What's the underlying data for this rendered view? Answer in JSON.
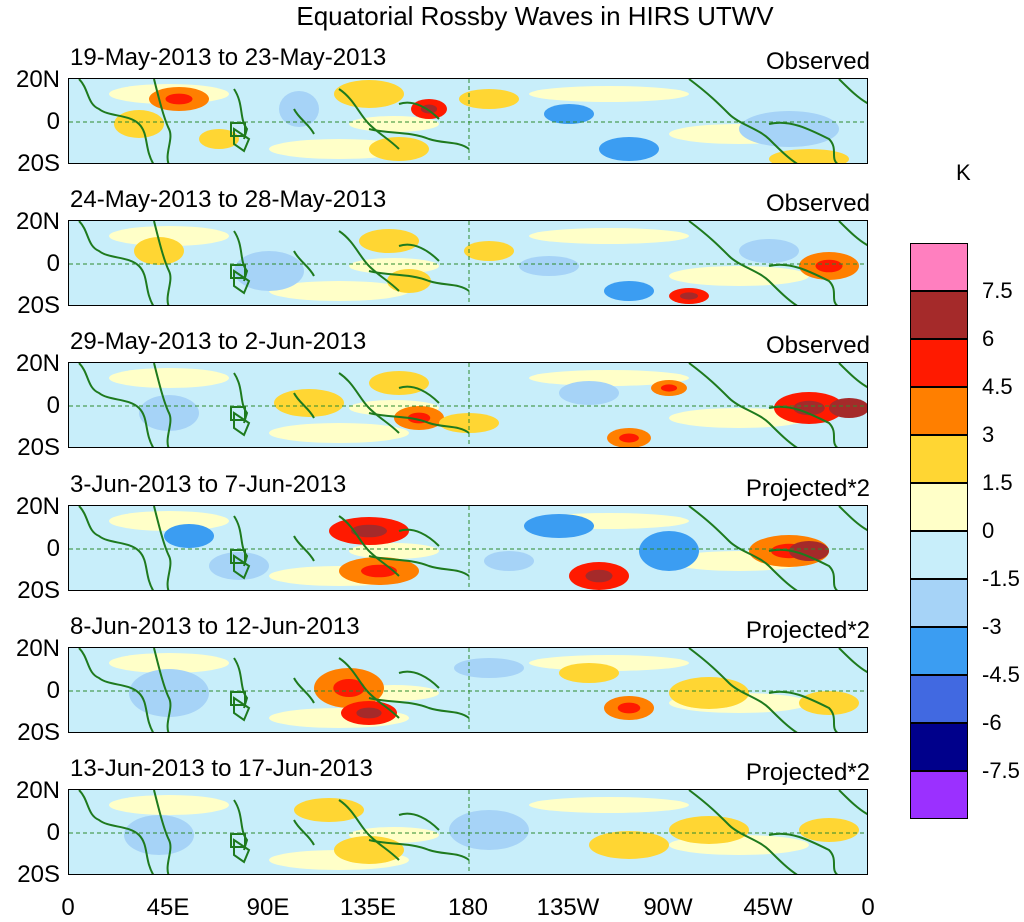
{
  "title": "Equatorial Rossby Waves in HIRS UTWV",
  "panels": [
    {
      "date_range": "19-May-2013 to 23-May-2013",
      "type": "Observed"
    },
    {
      "date_range": "24-May-2013 to 28-May-2013",
      "type": "Observed"
    },
    {
      "date_range": "29-May-2013 to 2-Jun-2013",
      "type": "Observed"
    },
    {
      "date_range": "3-Jun-2013 to 7-Jun-2013",
      "type": "Projected*2"
    },
    {
      "date_range": "8-Jun-2013 to 12-Jun-2013",
      "type": "Projected*2"
    },
    {
      "date_range": "13-Jun-2013 to 17-Jun-2013",
      "type": "Projected*2"
    }
  ],
  "lat_labels": [
    "20N",
    "0",
    "20S"
  ],
  "lon_labels": [
    "0",
    "45E",
    "90E",
    "135E",
    "180",
    "135W",
    "90W",
    "45W",
    "0"
  ],
  "colorbar": {
    "unit": "K",
    "ticks": [
      "7.5",
      "6",
      "4.5",
      "3",
      "1.5",
      "0",
      "-1.5",
      "-3",
      "-4.5",
      "-6",
      "-7.5"
    ],
    "colors": [
      "#ff7fbf",
      "#a52a2a",
      "#ff1a00",
      "#ff7f00",
      "#ffd633",
      "#ffffc8",
      "#c8eefa",
      "#a6d3f7",
      "#3b9df2",
      "#4169e1",
      "#00008b",
      "#9b30ff"
    ]
  },
  "colors": {
    "coastline": "#1e7a1e",
    "grid_line": "#2e8b2e"
  }
}
